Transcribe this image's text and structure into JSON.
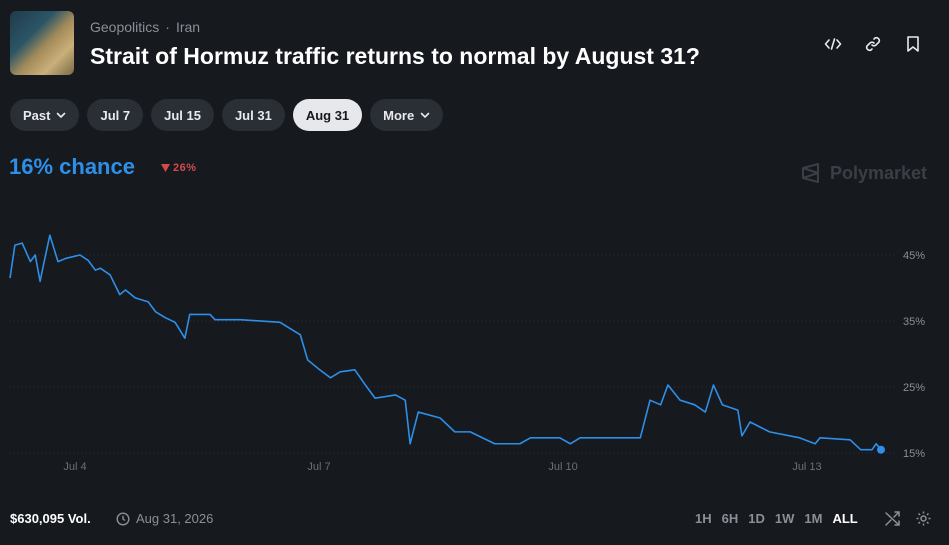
{
  "header": {
    "breadcrumb": [
      "Geopolitics",
      "Iran"
    ],
    "title": "Strait of Hormuz traffic returns to normal by August 31?"
  },
  "tabs": [
    "Past",
    "Jul 7",
    "Jul 15",
    "Jul 31",
    "Aug 31",
    "More"
  ],
  "selected_tab": 4,
  "chance": "16% chance",
  "change": "26%",
  "brand": "Polymarket",
  "chart_data": {
    "type": "line",
    "color": "#2e8fe8",
    "x": [
      3.2,
      3.26,
      3.35,
      3.45,
      3.51,
      3.57,
      3.62,
      3.69,
      3.79,
      3.89,
      4.06,
      4.16,
      4.25,
      4.31,
      4.43,
      4.55,
      4.62,
      4.74,
      4.9,
      4.99,
      5.11,
      5.23,
      5.35,
      5.41,
      5.66,
      5.72,
      6.03,
      6.52,
      6.77,
      6.86,
      7.01,
      7.14,
      7.26,
      7.44,
      7.57,
      7.69,
      7.94,
      8.06,
      8.12,
      8.22,
      8.49,
      8.67,
      8.86,
      9.16,
      9.47,
      9.6,
      9.96,
      10.09,
      10.21,
      10.46,
      10.95,
      11.07,
      11.2,
      11.29,
      11.44,
      11.62,
      11.75,
      11.85,
      11.96,
      12.15,
      12.2,
      12.3,
      12.54,
      12.91,
      13.1,
      13.16,
      13.53,
      13.66,
      13.8,
      13.85,
      13.91
    ],
    "values": [
      41.5,
      46.5,
      46.8,
      44,
      45,
      41,
      44,
      48,
      44,
      44.5,
      45,
      44.2,
      42.7,
      43,
      42,
      39,
      39.7,
      38.5,
      37.9,
      36.4,
      35.5,
      34.8,
      32.4,
      36,
      36,
      35.2,
      35.2,
      34.8,
      32.9,
      29.1,
      27.6,
      26.4,
      27.3,
      27.6,
      25.3,
      23.3,
      23.8,
      23,
      16.4,
      21.2,
      20.3,
      18.2,
      18.2,
      16.4,
      16.4,
      17.3,
      17.3,
      16.4,
      17.3,
      17.3,
      17.3,
      23,
      22.3,
      25.3,
      23,
      22.3,
      21.2,
      25.3,
      22.3,
      21.5,
      17.6,
      19.7,
      18.2,
      17.3,
      16.4,
      17.3,
      17,
      15.5,
      15.5,
      16.4,
      15.5
    ],
    "xlim": [
      3.2,
      13.91
    ],
    "xticks": [
      {
        "value": 4,
        "label": "Jul 4"
      },
      {
        "value": 7,
        "label": "Jul 7"
      },
      {
        "value": 10,
        "label": "Jul 10"
      },
      {
        "value": 13,
        "label": "Jul 13"
      }
    ],
    "ylim": [
      13,
      48
    ],
    "yticks": [
      {
        "value": 15,
        "label": "15%"
      },
      {
        "value": 25,
        "label": "25%"
      },
      {
        "value": 35,
        "label": "35%"
      },
      {
        "value": 45,
        "label": "45%"
      }
    ],
    "grid": true
  },
  "footer": {
    "volume": "$630,095 Vol.",
    "end_date": "Aug 31, 2026",
    "ranges": [
      "1H",
      "6H",
      "1D",
      "1W",
      "1M",
      "ALL"
    ],
    "selected_range": 5
  }
}
